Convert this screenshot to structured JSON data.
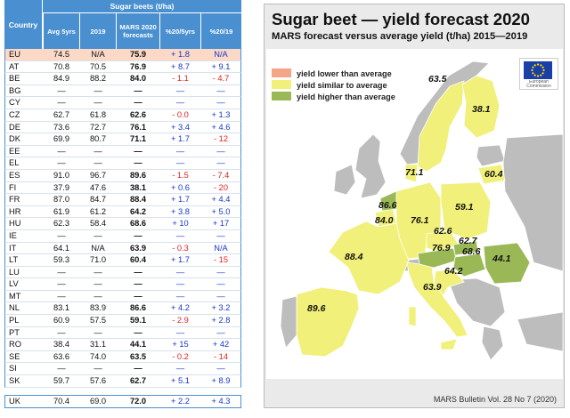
{
  "table": {
    "group_header": "Sugar beets (t/ha)",
    "col_country": "Country",
    "columns": [
      "Avg 5yrs",
      "2019",
      "MARS 2020 forecasts",
      "%20/5yrs",
      "%20/19"
    ],
    "rows": [
      {
        "country": "EU",
        "avg": "74.5",
        "y2019": "N/A",
        "forecast": "75.9",
        "d5": "+ 1.8",
        "d19": "N/A",
        "d5c": "blue",
        "d19c": "blue"
      },
      {
        "country": "AT",
        "avg": "70.8",
        "y2019": "70.5",
        "forecast": "76.9",
        "d5": "+ 8.7",
        "d19": "+ 9.1",
        "d5c": "blue",
        "d19c": "blue"
      },
      {
        "country": "BE",
        "avg": "84.9",
        "y2019": "88.2",
        "forecast": "84.0",
        "d5": "- 1.1",
        "d19": "- 4.7",
        "d5c": "red",
        "d19c": "red"
      },
      {
        "country": "BG",
        "avg": "—",
        "y2019": "—",
        "forecast": "—",
        "d5": "—",
        "d19": "—",
        "d5c": "blue",
        "d19c": "blue"
      },
      {
        "country": "CY",
        "avg": "—",
        "y2019": "—",
        "forecast": "—",
        "d5": "—",
        "d19": "—",
        "d5c": "blue",
        "d19c": "blue"
      },
      {
        "country": "CZ",
        "avg": "62.7",
        "y2019": "61.8",
        "forecast": "62.6",
        "d5": "- 0.0",
        "d19": "+ 1.3",
        "d5c": "red",
        "d19c": "blue"
      },
      {
        "country": "DE",
        "avg": "73.6",
        "y2019": "72.7",
        "forecast": "76.1",
        "d5": "+ 3.4",
        "d19": "+ 4.6",
        "d5c": "blue",
        "d19c": "blue"
      },
      {
        "country": "DK",
        "avg": "69.9",
        "y2019": "80.7",
        "forecast": "71.1",
        "d5": "+ 1.7",
        "d19": "- 12",
        "d5c": "blue",
        "d19c": "red"
      },
      {
        "country": "EE",
        "avg": "—",
        "y2019": "—",
        "forecast": "—",
        "d5": "—",
        "d19": "—",
        "d5c": "blue",
        "d19c": "blue"
      },
      {
        "country": "EL",
        "avg": "—",
        "y2019": "—",
        "forecast": "—",
        "d5": "—",
        "d19": "—",
        "d5c": "blue",
        "d19c": "blue"
      },
      {
        "country": "ES",
        "avg": "91.0",
        "y2019": "96.7",
        "forecast": "89.6",
        "d5": "- 1.5",
        "d19": "- 7.4",
        "d5c": "red",
        "d19c": "red"
      },
      {
        "country": "FI",
        "avg": "37.9",
        "y2019": "47.6",
        "forecast": "38.1",
        "d5": "+ 0.6",
        "d19": "- 20",
        "d5c": "blue",
        "d19c": "red"
      },
      {
        "country": "FR",
        "avg": "87.0",
        "y2019": "84.7",
        "forecast": "88.4",
        "d5": "+ 1.7",
        "d19": "+ 4.4",
        "d5c": "blue",
        "d19c": "blue"
      },
      {
        "country": "HR",
        "avg": "61.9",
        "y2019": "61.2",
        "forecast": "64.2",
        "d5": "+ 3.8",
        "d19": "+ 5.0",
        "d5c": "blue",
        "d19c": "blue"
      },
      {
        "country": "HU",
        "avg": "62.3",
        "y2019": "58.4",
        "forecast": "68.6",
        "d5": "+ 10",
        "d19": "+ 17",
        "d5c": "blue",
        "d19c": "blue"
      },
      {
        "country": "IE",
        "avg": "—",
        "y2019": "—",
        "forecast": "—",
        "d5": "—",
        "d19": "—",
        "d5c": "blue",
        "d19c": "blue"
      },
      {
        "country": "IT",
        "avg": "64.1",
        "y2019": "N/A",
        "forecast": "63.9",
        "d5": "- 0.3",
        "d19": "N/A",
        "d5c": "red",
        "d19c": "blue"
      },
      {
        "country": "LT",
        "avg": "59.3",
        "y2019": "71.0",
        "forecast": "60.4",
        "d5": "+ 1.7",
        "d19": "- 15",
        "d5c": "blue",
        "d19c": "red"
      },
      {
        "country": "LU",
        "avg": "—",
        "y2019": "—",
        "forecast": "—",
        "d5": "—",
        "d19": "—",
        "d5c": "blue",
        "d19c": "blue"
      },
      {
        "country": "LV",
        "avg": "—",
        "y2019": "—",
        "forecast": "—",
        "d5": "—",
        "d19": "—",
        "d5c": "blue",
        "d19c": "blue"
      },
      {
        "country": "MT",
        "avg": "—",
        "y2019": "—",
        "forecast": "—",
        "d5": "—",
        "d19": "—",
        "d5c": "blue",
        "d19c": "blue"
      },
      {
        "country": "NL",
        "avg": "83.1",
        "y2019": "83.9",
        "forecast": "86.6",
        "d5": "+ 4.2",
        "d19": "+ 3.2",
        "d5c": "blue",
        "d19c": "blue"
      },
      {
        "country": "PL",
        "avg": "60.9",
        "y2019": "57.5",
        "forecast": "59.1",
        "d5": "- 2.9",
        "d19": "+ 2.8",
        "d5c": "red",
        "d19c": "blue"
      },
      {
        "country": "PT",
        "avg": "—",
        "y2019": "—",
        "forecast": "—",
        "d5": "—",
        "d19": "—",
        "d5c": "blue",
        "d19c": "blue"
      },
      {
        "country": "RO",
        "avg": "38.4",
        "y2019": "31.1",
        "forecast": "44.1",
        "d5": "+ 15",
        "d19": "+ 42",
        "d5c": "blue",
        "d19c": "blue"
      },
      {
        "country": "SE",
        "avg": "63.6",
        "y2019": "74.0",
        "forecast": "63.5",
        "d5": "- 0.2",
        "d19": "- 14",
        "d5c": "red",
        "d19c": "red"
      },
      {
        "country": "SI",
        "avg": "—",
        "y2019": "—",
        "forecast": "—",
        "d5": "—",
        "d19": "—",
        "d5c": "blue",
        "d19c": "blue"
      },
      {
        "country": "SK",
        "avg": "59.7",
        "y2019": "57.6",
        "forecast": "62.7",
        "d5": "+ 5.1",
        "d19": "+ 8.9",
        "d5c": "blue",
        "d19c": "blue"
      }
    ],
    "uk_row": {
      "country": "UK",
      "avg": "70.4",
      "y2019": "69.0",
      "forecast": "72.0",
      "d5": "+ 2.2",
      "d19": "+ 4.3",
      "d5c": "blue",
      "d19c": "blue"
    }
  },
  "map": {
    "title": "Sugar beet — yield forecast 2020",
    "subtitle": "MARS forecast versus average yield (t/ha) 2015—2019",
    "legend": [
      {
        "label": "yield lower than average",
        "color": "#f4a585"
      },
      {
        "label": "yield similar to average",
        "color": "#f0f07a"
      },
      {
        "label": "yield higher than average",
        "color": "#9ab956"
      }
    ],
    "colors": {
      "similar": "#f0f07a",
      "higher": "#9ab956",
      "lower": "#f4a585",
      "other": "#bdbdbd",
      "sea": "#ffffff"
    },
    "logo_icon": "eu-flag-icon",
    "logo_text": "European Commission",
    "labels": [
      {
        "id": "SE",
        "value": "63.5"
      },
      {
        "id": "FI",
        "value": "38.1"
      },
      {
        "id": "DK",
        "value": "71.1"
      },
      {
        "id": "LT",
        "value": "60.4"
      },
      {
        "id": "NL",
        "value": "86.6"
      },
      {
        "id": "BE",
        "value": "84.0"
      },
      {
        "id": "DE",
        "value": "76.1"
      },
      {
        "id": "PL",
        "value": "59.1"
      },
      {
        "id": "CZ",
        "value": "62.6"
      },
      {
        "id": "SK",
        "value": "62.7"
      },
      {
        "id": "AT",
        "value": "76.9"
      },
      {
        "id": "HU",
        "value": "68.6"
      },
      {
        "id": "RO",
        "value": "44.1"
      },
      {
        "id": "FR",
        "value": "88.4"
      },
      {
        "id": "HR",
        "value": "64.2"
      },
      {
        "id": "IT",
        "value": "63.9"
      },
      {
        "id": "ES",
        "value": "89.6"
      }
    ],
    "credit": "MARS Bulletin Vol. 28 No 7 (2020)"
  }
}
